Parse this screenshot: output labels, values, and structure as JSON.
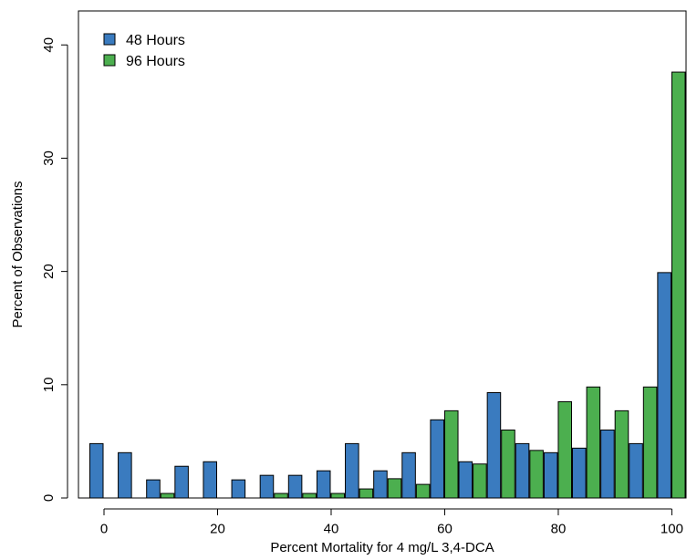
{
  "chart_data": {
    "type": "bar",
    "xlabel": "Percent Mortality for 4 mg/L 3,4-DCA",
    "ylabel": "Percent of Observations",
    "xlim": [
      -4.5,
      102.5
    ],
    "ylim": [
      0,
      43
    ],
    "x_ticks": [
      0,
      20,
      40,
      60,
      80,
      100
    ],
    "y_ticks": [
      0,
      10,
      20,
      30,
      40
    ],
    "grid": false,
    "legend_position": "top-left",
    "categories": [
      0,
      5,
      10,
      15,
      20,
      25,
      30,
      35,
      40,
      45,
      50,
      55,
      60,
      65,
      70,
      75,
      80,
      85,
      90,
      95,
      100
    ],
    "series": [
      {
        "name": "48 Hours",
        "color": "#3a7bbf",
        "values": [
          4.8,
          4.0,
          1.6,
          2.8,
          3.2,
          1.6,
          2.0,
          2.0,
          2.4,
          4.8,
          2.4,
          4.0,
          6.9,
          3.2,
          9.3,
          4.8,
          4.0,
          4.4,
          6.0,
          4.8,
          19.9
        ]
      },
      {
        "name": "96 Hours",
        "color": "#4caf4f",
        "values": [
          0.0,
          0.0,
          0.4,
          0.0,
          0.0,
          0.0,
          0.4,
          0.4,
          0.4,
          0.8,
          1.7,
          1.2,
          7.7,
          3.0,
          6.0,
          4.2,
          8.5,
          9.8,
          7.7,
          9.8,
          37.6
        ]
      }
    ]
  }
}
